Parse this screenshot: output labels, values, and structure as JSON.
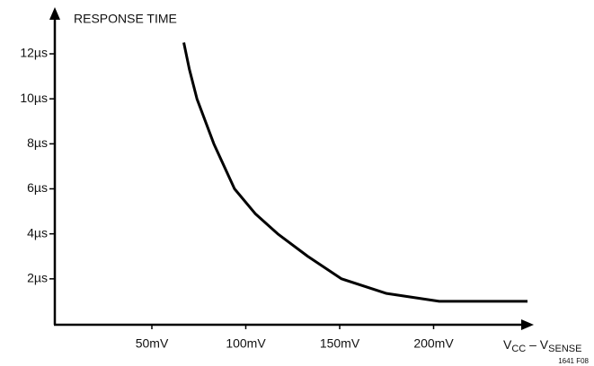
{
  "chart_data": {
    "type": "line",
    "y_label": "RESPONSE TIME",
    "x_label": [
      "V",
      "CC",
      " – V",
      "SENSE"
    ],
    "note": "1641 F08",
    "x": [
      67,
      70,
      74,
      83,
      94,
      105,
      117,
      133,
      151,
      175,
      203,
      250
    ],
    "series": [
      {
        "color": "#000000",
        "values": [
          12.5,
          11.3,
          10,
          8,
          6,
          4.9,
          4,
          3,
          2,
          1.35,
          1,
          1
        ]
      }
    ],
    "xlim": [
      0,
      250
    ],
    "ylim": [
      0,
      12
    ],
    "xticks": [
      {
        "value": 50,
        "label": "50mV"
      },
      {
        "value": 100,
        "label": "100mV"
      },
      {
        "value": 150,
        "label": "150mV"
      },
      {
        "value": 200,
        "label": "200mV"
      }
    ],
    "yticks": [
      {
        "value": 2,
        "label": "2µs"
      },
      {
        "value": 4,
        "label": "4µs"
      },
      {
        "value": 6,
        "label": "6µs"
      },
      {
        "value": 8,
        "label": "8µs"
      },
      {
        "value": 10,
        "label": "10µs"
      },
      {
        "value": 12,
        "label": "12µs"
      }
    ]
  }
}
